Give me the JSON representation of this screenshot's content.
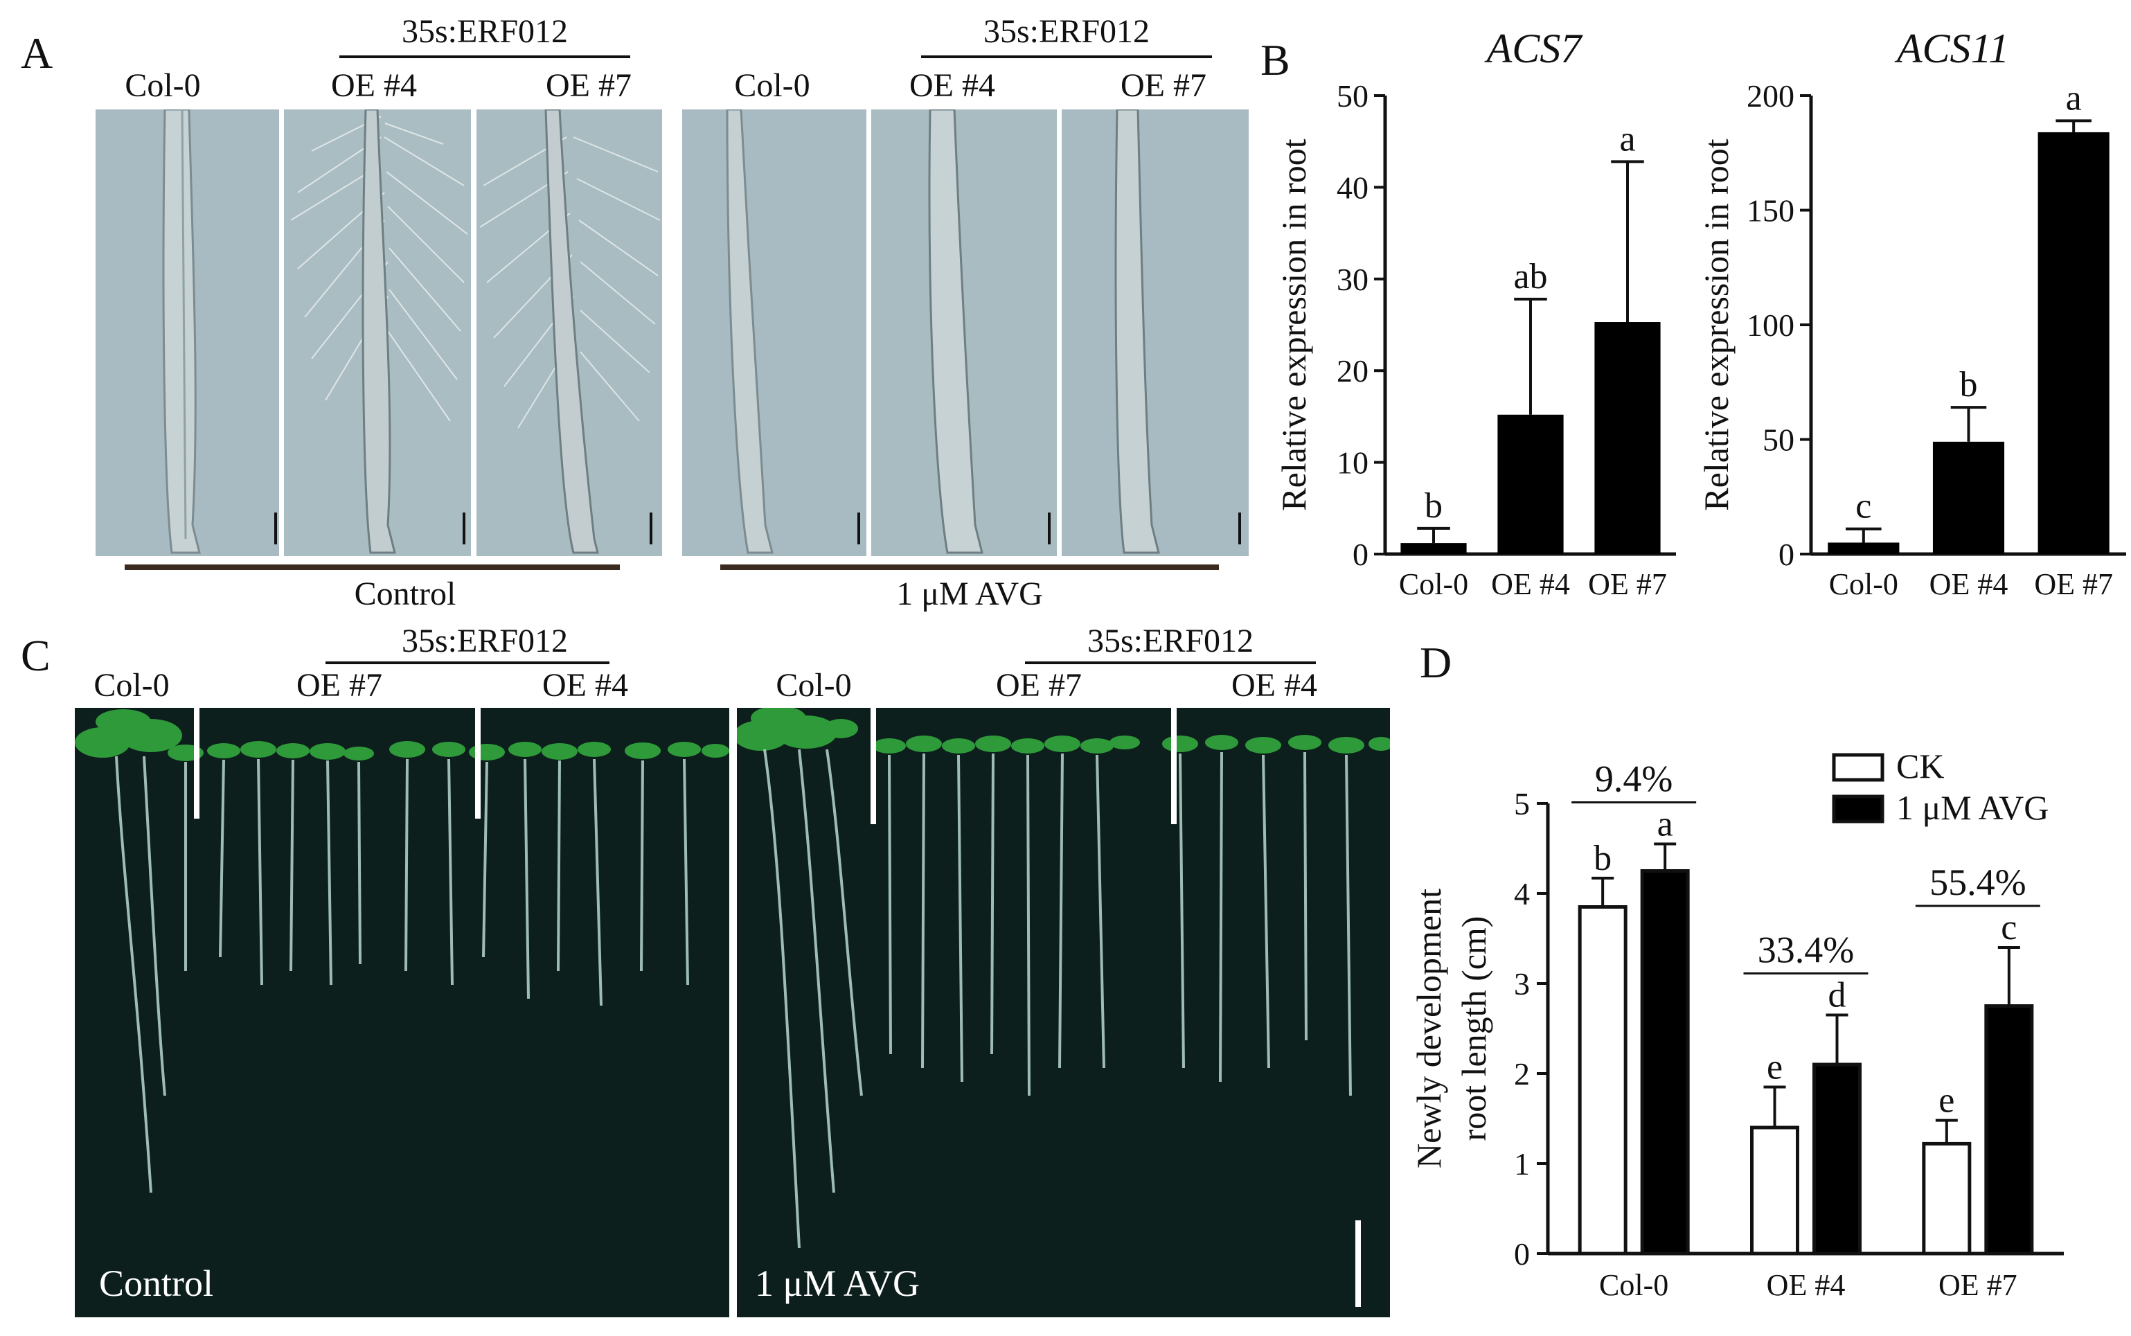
{
  "panelA": {
    "label": "A",
    "construct": "35s:ERF012",
    "left": {
      "col0": "Col-0",
      "oe4": "OE #4",
      "oe7": "OE #7",
      "condition": "Control"
    },
    "right": {
      "col0": "Col-0",
      "oe4": "OE #4",
      "oe7": "OE #7",
      "condition": "1 μM AVG"
    }
  },
  "panelB": {
    "label": "B"
  },
  "panelC": {
    "label": "C",
    "construct": "35s:ERF012",
    "left": {
      "col0": "Col-0",
      "oe7": "OE #7",
      "oe4": "OE #4",
      "condition": "Control"
    },
    "right": {
      "col0": "Col-0",
      "oe7": "OE #7",
      "oe4": "OE #4",
      "condition": "1 μM AVG"
    }
  },
  "panelD": {
    "label": "D"
  },
  "colors": {
    "bar_fill": "#000000",
    "ck_fill": "#ffffff",
    "micro_bg": "#a9bcc2",
    "plate_bg": "#0d1f1d",
    "seedling": "#2e9a3a",
    "root": "#b8d8d0"
  },
  "chart_data": [
    {
      "type": "bar",
      "title": "ACS7",
      "ylabel": "Relative expression in root",
      "xlabel": "",
      "categories": [
        "Col-0",
        "OE #4",
        "OE #7"
      ],
      "values": [
        1.2,
        15.2,
        25.3
      ],
      "errors": [
        1.6,
        12.6,
        17.5
      ],
      "letters": [
        "b",
        "ab",
        "a"
      ],
      "ylim": [
        0,
        50
      ],
      "yticks": [
        0,
        10,
        20,
        30,
        40,
        50
      ]
    },
    {
      "type": "bar",
      "title": "ACS11",
      "ylabel": "Relative expression in root",
      "xlabel": "",
      "categories": [
        "Col-0",
        "OE #4",
        "OE #7"
      ],
      "values": [
        5,
        49,
        184
      ],
      "errors": [
        6,
        15,
        5
      ],
      "letters": [
        "c",
        "b",
        "a"
      ],
      "ylim": [
        0,
        200
      ],
      "yticks": [
        0,
        50,
        100,
        150,
        200
      ]
    },
    {
      "type": "bar",
      "title": "",
      "ylabel": "Newly development root length (cm)",
      "ylabel_lines": [
        "Newly development",
        "root length (cm)"
      ],
      "xlabel": "",
      "categories": [
        "Col-0",
        "OE #4",
        "OE #7"
      ],
      "series": [
        {
          "name": "CK",
          "values": [
            3.85,
            1.4,
            1.22
          ],
          "errors": [
            0.32,
            0.45,
            0.26
          ],
          "letters": [
            "b",
            "e",
            "e"
          ],
          "fill": "#ffffff"
        },
        {
          "name": "1 μM AVG",
          "values": [
            4.25,
            2.1,
            2.75
          ],
          "errors": [
            0.3,
            0.55,
            0.65
          ],
          "letters": [
            "a",
            "d",
            "c"
          ],
          "fill": "#000000"
        }
      ],
      "percent_labels": [
        "9.4%",
        "33.4%",
        "55.4%"
      ],
      "ylim": [
        0,
        5
      ],
      "yticks": [
        0,
        1,
        2,
        3,
        4,
        5
      ],
      "legend": "top-right"
    }
  ]
}
